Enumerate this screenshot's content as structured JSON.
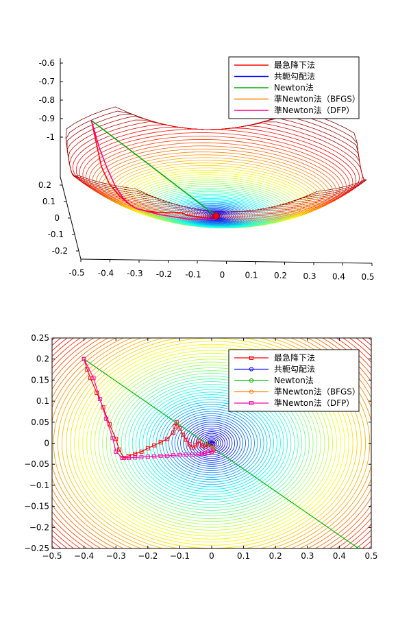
{
  "chart_data": [
    {
      "type": "line",
      "view": "3d-contour",
      "title": "",
      "xlabel": "",
      "ylabel": "",
      "zlabel": "",
      "xlim": [
        -0.5,
        0.5
      ],
      "ylim": [
        -0.25,
        0.25
      ],
      "zlim": [
        -1.0,
        -0.6
      ],
      "x_ticks": [
        "-0.5",
        "-0.4",
        "-0.3",
        "-0.2",
        "-0.1",
        "0",
        "0.1",
        "0.2",
        "0.3",
        "0.4",
        "0.5"
      ],
      "y_ticks": [
        "-0.2",
        "-0.1",
        "0",
        "0.1",
        "0.2"
      ],
      "z_ticks": [
        "-0.6",
        "-0.7",
        "-0.8",
        "-0.9",
        "-1"
      ],
      "colormap": "jet",
      "legend_position": "top-right",
      "series": [
        {
          "name": "最急降下法",
          "color": "#ff0000",
          "marker": "none",
          "x": [
            -0.4,
            -0.39,
            -0.38,
            -0.36,
            -0.33,
            -0.3,
            -0.28,
            -0.25,
            -0.2,
            -0.15,
            -0.12,
            -0.1,
            -0.05,
            -0.02,
            0.0
          ],
          "y": [
            0.2,
            0.16,
            0.1,
            0.05,
            0.01,
            -0.02,
            -0.035,
            -0.03,
            -0.015,
            0.0,
            0.01,
            -0.005,
            -0.01,
            -0.005,
            0.0
          ]
        },
        {
          "name": "共軛勾配法",
          "color": "#0000ff",
          "marker": "none",
          "x": [
            0.0
          ],
          "y": [
            0.0
          ]
        },
        {
          "name": "Newton法",
          "color": "#00aa00",
          "marker": "none",
          "x": [
            -0.4,
            0.0
          ],
          "y": [
            0.2,
            0.0
          ]
        },
        {
          "name": "準Newton法（BFGS）",
          "color": "#ff8000",
          "marker": "none",
          "x": [
            0.0
          ],
          "y": [
            0.0
          ]
        },
        {
          "name": "準Newton法（DFP）",
          "color": "#ff0080",
          "marker": "none",
          "x": [
            -0.4,
            -0.38,
            -0.36,
            -0.34,
            -0.32,
            -0.3,
            -0.28,
            -0.2,
            -0.1,
            -0.05,
            0.0
          ],
          "y": [
            0.2,
            0.15,
            0.105,
            0.055,
            0.01,
            -0.02,
            -0.035,
            -0.03,
            -0.03,
            -0.025,
            -0.02
          ]
        }
      ]
    },
    {
      "type": "line",
      "view": "2d-contour",
      "title": "",
      "xlabel": "",
      "ylabel": "",
      "xlim": [
        -0.5,
        0.5
      ],
      "ylim": [
        -0.25,
        0.25
      ],
      "x_ticks": [
        "−0.5",
        "−0.4",
        "−0.3",
        "−0.2",
        "−0.1",
        "0",
        "0.1",
        "0.2",
        "0.3",
        "0.4",
        "0.5"
      ],
      "y_ticks": [
        "0.25",
        "0.2",
        "0.15",
        "0.1",
        "0.05",
        "0",
        "−0.05",
        "−0.1",
        "−0.15",
        "−0.2",
        "−0.25"
      ],
      "colormap": "jet",
      "legend_position": "top-right",
      "series": [
        {
          "name": "最急降下法",
          "color": "#ff0000",
          "marker": "square",
          "x": [
            -0.4,
            -0.39,
            -0.38,
            -0.36,
            -0.34,
            -0.32,
            -0.3,
            -0.29,
            -0.275,
            -0.26,
            -0.24,
            -0.22,
            -0.2,
            -0.18,
            -0.16,
            -0.14,
            -0.12,
            -0.115,
            -0.11,
            -0.1,
            -0.09,
            -0.08,
            -0.07,
            -0.06,
            -0.05,
            -0.04,
            -0.03,
            -0.02,
            -0.01,
            0.0
          ],
          "y": [
            0.2,
            0.175,
            0.155,
            0.12,
            0.085,
            0.045,
            0.01,
            -0.015,
            -0.035,
            -0.03,
            -0.025,
            -0.02,
            -0.012,
            -0.005,
            0.002,
            0.01,
            0.025,
            0.04,
            0.05,
            0.035,
            0.02,
            0.008,
            -0.003,
            -0.01,
            -0.005,
            0.005,
            -0.005,
            -0.008,
            -0.003,
            0.0
          ]
        },
        {
          "name": "共軛勾配法",
          "color": "#0000ff",
          "marker": "circle",
          "x": [
            -0.005,
            0.0,
            0.005
          ],
          "y": [
            0.002,
            0.0,
            -0.002
          ]
        },
        {
          "name": "Newton法",
          "color": "#00bb00",
          "marker": "circle",
          "x": [
            -0.4,
            0.46
          ],
          "y": [
            0.2,
            -0.25
          ]
        },
        {
          "name": "準Newton法（BFGS）",
          "color": "#ff8000",
          "marker": "circle",
          "x": [
            0.0,
            0.003,
            0.005
          ],
          "y": [
            -0.005,
            -0.012,
            -0.02
          ]
        },
        {
          "name": "準Newton法（DFP）",
          "color": "#ff00a0",
          "marker": "square",
          "x": [
            -0.4,
            -0.37,
            -0.35,
            -0.33,
            -0.31,
            -0.3,
            -0.28,
            -0.26,
            -0.24,
            -0.22,
            -0.2,
            -0.18,
            -0.16,
            -0.14,
            -0.12,
            -0.1,
            -0.08,
            -0.06,
            -0.04,
            -0.03,
            -0.02,
            -0.01,
            0.0,
            0.005
          ],
          "y": [
            0.2,
            0.155,
            0.105,
            0.058,
            0.012,
            -0.02,
            -0.035,
            -0.035,
            -0.034,
            -0.033,
            -0.032,
            -0.031,
            -0.03,
            -0.03,
            -0.029,
            -0.028,
            -0.027,
            -0.027,
            -0.026,
            -0.025,
            -0.024,
            -0.022,
            -0.02,
            -0.015
          ]
        }
      ]
    }
  ]
}
